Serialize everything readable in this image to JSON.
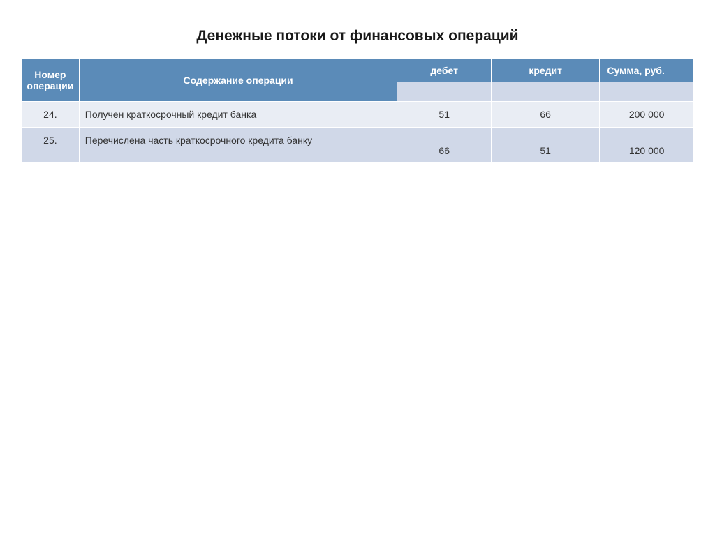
{
  "title": "Денежные потоки от финансовых операций",
  "table": {
    "type": "table",
    "header_bg": "#5b8bb8",
    "header_text_color": "#ffffff",
    "subheader_bg": "#d0d8e8",
    "row_odd_bg": "#e9edf4",
    "row_even_bg": "#d0d8e8",
    "border_color": "#ffffff",
    "columns": {
      "num": "Номер операции",
      "desc": "Содержание операции",
      "debit": "дебет",
      "credit": "кредит",
      "sum": "Сумма, руб."
    },
    "rows": [
      {
        "num": "24.",
        "desc": "Получен краткосрочный кредит банка",
        "debit": "51",
        "credit": "66",
        "sum": "200 000"
      },
      {
        "num": "25.",
        "desc": "Перечислена часть краткосрочного кредита банку",
        "debit": "66",
        "credit": "51",
        "sum": "120 000"
      }
    ]
  }
}
